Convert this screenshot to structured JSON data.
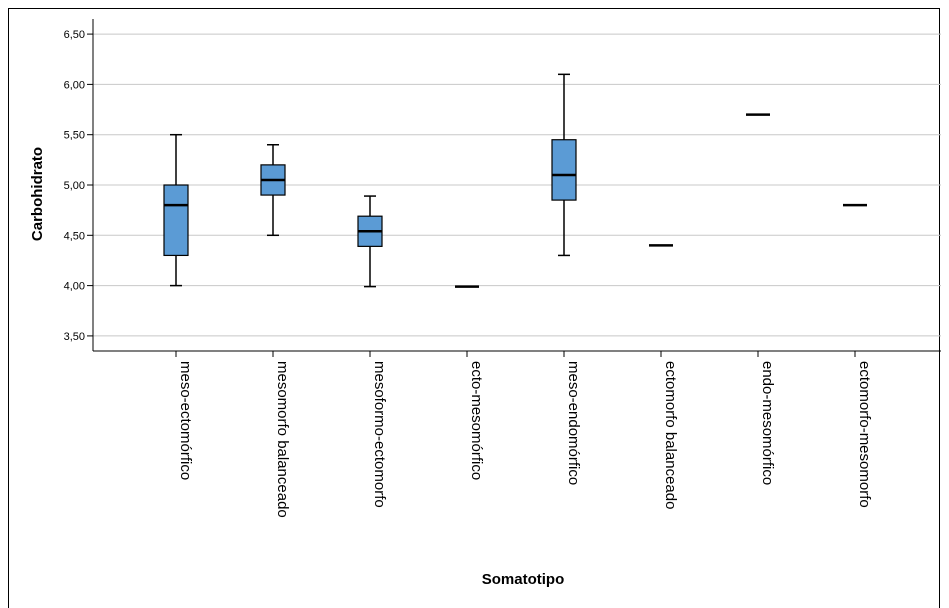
{
  "chart_data": {
    "type": "boxplot",
    "title": "",
    "xlabel": "Somatotipo",
    "ylabel": "Carbohidrato",
    "ylim": [
      3.35,
      6.65
    ],
    "yticks": [
      3.5,
      4.0,
      4.5,
      5.0,
      5.5,
      6.0,
      6.5
    ],
    "ytick_labels": [
      "3,50",
      "4,00",
      "4,50",
      "5,00",
      "5,50",
      "6,00",
      "6,50"
    ],
    "grid": true,
    "box_color": "#5b9bd5",
    "categories": [
      "meso-ectomórfico",
      "mesomorfo balanceado",
      "mesoformo-ectomorfo",
      "ecto-mesomórfico",
      "meso-endomórfico",
      "ectomorfo balanceado",
      "endo-mesomórfico",
      "ectomorfo-mesomorfo"
    ],
    "boxes": [
      {
        "min": 4.0,
        "q1": 4.3,
        "median": 4.8,
        "q3": 5.0,
        "max": 5.5
      },
      {
        "min": 4.5,
        "q1": 4.9,
        "median": 5.05,
        "q3": 5.2,
        "max": 5.4
      },
      {
        "min": 3.99,
        "q1": 4.39,
        "median": 4.54,
        "q3": 4.69,
        "max": 4.89
      },
      {
        "min": 3.99,
        "q1": 3.99,
        "median": 3.99,
        "q3": 3.99,
        "max": 3.99
      },
      {
        "min": 4.3,
        "q1": 4.85,
        "median": 5.1,
        "q3": 5.45,
        "max": 6.1
      },
      {
        "min": 4.4,
        "q1": 4.4,
        "median": 4.4,
        "q3": 4.4,
        "max": 4.4
      },
      {
        "min": 5.7,
        "q1": 5.7,
        "median": 5.7,
        "q3": 5.7,
        "max": 5.7
      },
      {
        "min": 4.8,
        "q1": 4.8,
        "median": 4.8,
        "q3": 4.8,
        "max": 4.8
      }
    ]
  }
}
